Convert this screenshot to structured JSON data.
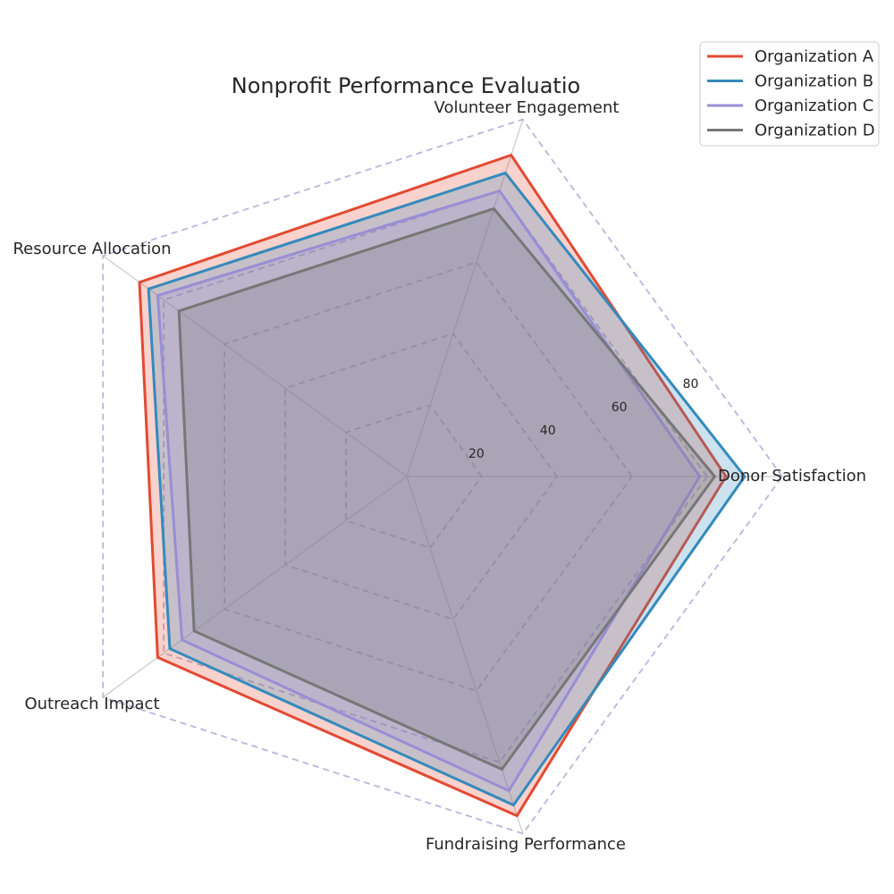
{
  "chart_data": {
    "type": "radar",
    "title": "Nonprofit Performance Evaluatio",
    "categories": [
      "Donor Satisfaction",
      "Volunteer Engagement",
      "Resource Allocation",
      "Outreach Impact",
      "Fundraising Performance"
    ],
    "rticks": [
      20,
      40,
      60,
      80
    ],
    "rlim": [
      0,
      100
    ],
    "grid": true,
    "legend_position": "top-right",
    "series": [
      {
        "name": "Organization A",
        "values": [
          85,
          90,
          88,
          82,
          95
        ],
        "color": "#E24A33"
      },
      {
        "name": "Organization B",
        "values": [
          90,
          85,
          85,
          78,
          92
        ],
        "color": "#348ABD"
      },
      {
        "name": "Organization C",
        "values": [
          78,
          80,
          82,
          74,
          88
        ],
        "color": "#988ED5"
      },
      {
        "name": "Organization D",
        "values": [
          82,
          75,
          75,
          70,
          82
        ],
        "color": "#777777"
      }
    ]
  }
}
